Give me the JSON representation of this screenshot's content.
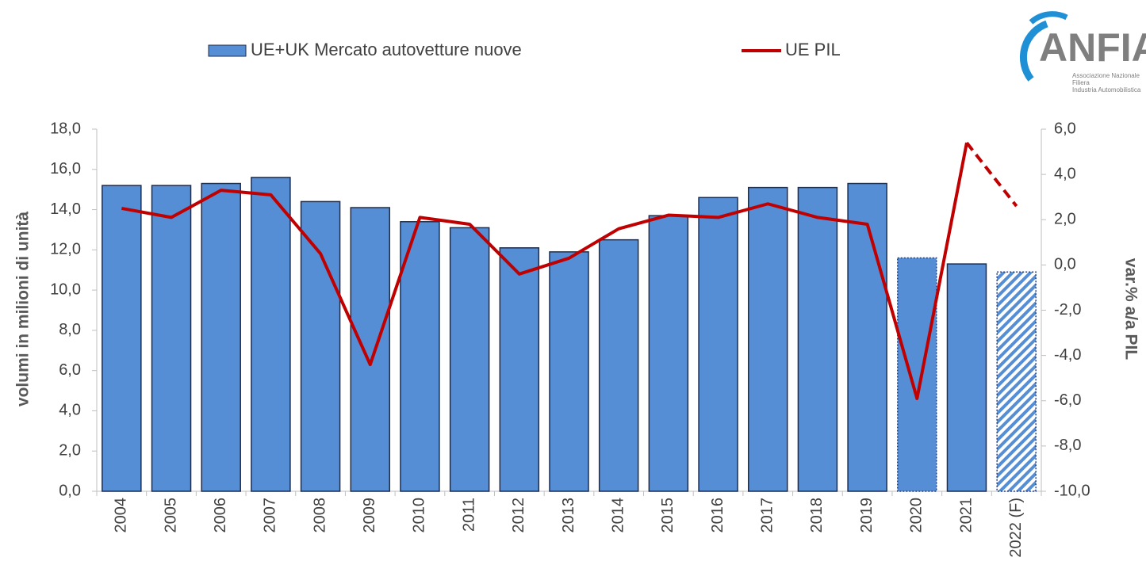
{
  "chart_data": {
    "type": "bar_line",
    "logo": {
      "name": "ANFIA",
      "lines": [
        "Associazione Nazionale",
        "Filiera",
        "Industria Automobilistica"
      ]
    },
    "y_label": "volumi in milioni di unità",
    "y2_label": "var.% a/a PIL",
    "categories": [
      "2004",
      "2005",
      "2006",
      "2007",
      "2008",
      "2009",
      "2010",
      "2011",
      "2012",
      "2013",
      "2014",
      "2015",
      "2016",
      "2017",
      "2018",
      "2019",
      "2020",
      "2021",
      "2022 (F)"
    ],
    "series": [
      {
        "name": "UE+UK Mercato autovetture nuove",
        "type": "bar",
        "color": "#558ed5",
        "styles": [
          "solid",
          "solid",
          "solid",
          "solid",
          "solid",
          "solid",
          "solid",
          "solid",
          "solid",
          "solid",
          "solid",
          "solid",
          "solid",
          "solid",
          "solid",
          "solid",
          "dotted",
          "solid",
          "hatched"
        ],
        "values": [
          15.2,
          15.2,
          15.3,
          15.6,
          14.4,
          14.1,
          13.4,
          13.1,
          12.1,
          11.9,
          12.5,
          13.7,
          14.6,
          15.1,
          15.1,
          15.3,
          11.6,
          11.3,
          10.9
        ]
      },
      {
        "name": "UE PIL",
        "type": "line",
        "axis": "y2",
        "color": "#c00000",
        "dashed_last": true,
        "values": [
          2.5,
          2.1,
          3.3,
          3.1,
          0.5,
          -4.4,
          2.1,
          1.8,
          -0.4,
          0.3,
          1.6,
          2.2,
          2.1,
          2.7,
          2.1,
          1.8,
          -5.9,
          5.4,
          2.6
        ]
      }
    ],
    "ylim": [
      0,
      18
    ],
    "yticks": [
      {
        "value": 0,
        "label": "0,0"
      },
      {
        "value": 2,
        "label": "2,0"
      },
      {
        "value": 4,
        "label": "4,0"
      },
      {
        "value": 6,
        "label": "6,0"
      },
      {
        "value": 8,
        "label": "8,0"
      },
      {
        "value": 10,
        "label": "10,0"
      },
      {
        "value": 12,
        "label": "12,0"
      },
      {
        "value": 14,
        "label": "14,0"
      },
      {
        "value": 16,
        "label": "16,0"
      },
      {
        "value": 18,
        "label": "18,0"
      }
    ],
    "y2lim": [
      -10,
      6
    ],
    "y2ticks": [
      {
        "value": -10,
        "label": "-10,0"
      },
      {
        "value": -8,
        "label": "-8,0"
      },
      {
        "value": -6,
        "label": "-6,0"
      },
      {
        "value": -4,
        "label": "-4,0"
      },
      {
        "value": -2,
        "label": "-2,0"
      },
      {
        "value": 0,
        "label": "0,0"
      },
      {
        "value": 2,
        "label": "2,0"
      },
      {
        "value": 4,
        "label": "4,0"
      },
      {
        "value": 6,
        "label": "6,0"
      }
    ],
    "grid": false
  }
}
